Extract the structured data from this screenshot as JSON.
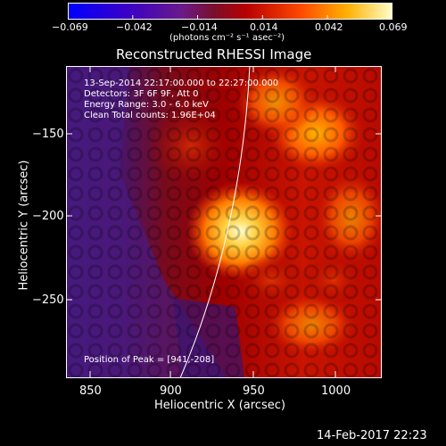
{
  "colorbar": {
    "ticks": [
      "−0.069",
      "−0.042",
      "−0.014",
      "0.014",
      "0.042",
      "0.069"
    ],
    "units": "(photons cm⁻² s⁻¹ asec⁻²)"
  },
  "title": "Reconstructed RHESSI Image",
  "info": {
    "line1": "13-Sep-2014 22:17:00.000 to 22:27:00.000",
    "line2": "Detectors: 3F 6F 9F, Att 0",
    "line3": "Energy Range: 3.0 - 6.0 keV",
    "line4": "Clean     Total counts: 1.96E+04",
    "peak": "Position of Peak = [941,-208]"
  },
  "axes": {
    "xlabel": "Heliocentric X (arcsec)",
    "ylabel": "Heliocentric Y (arcsec)",
    "xticks": [
      "850",
      "900",
      "950",
      "1000"
    ],
    "yticks": [
      "−150",
      "−200",
      "−250"
    ]
  },
  "footer_timestamp": "14-Feb-2017 22:23",
  "colors": {
    "background": "#000000",
    "text": "#ffffff"
  }
}
